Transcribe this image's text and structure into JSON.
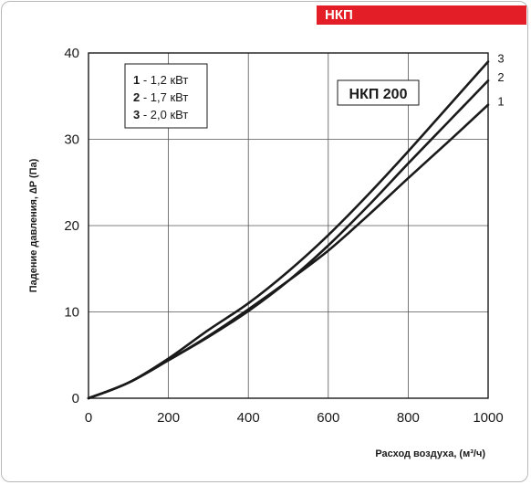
{
  "header": {
    "badge_label": "НКП"
  },
  "colors": {
    "badge": "#e41e26",
    "curves": "#1a1a1a",
    "grid": "#555555"
  },
  "chart_data": {
    "type": "line",
    "title": "",
    "model_label": "НКП 200",
    "xlabel": "Расход воздуха, (м³/ч)",
    "ylabel": "Падение давления, ∆P (Па)",
    "xlim": [
      0,
      1000
    ],
    "ylim": [
      0,
      40
    ],
    "xticks": [
      0,
      200,
      400,
      600,
      800,
      1000
    ],
    "yticks": [
      0,
      10,
      20,
      30,
      40
    ],
    "grid": true,
    "legend": {
      "placement": "top-left",
      "entries": [
        {
          "num": "1",
          "text": " - 1,2 кВт"
        },
        {
          "num": "2",
          "text": " - 1,7 кВт"
        },
        {
          "num": "3",
          "text": " - 2,0 кВт"
        }
      ]
    },
    "series": [
      {
        "name": "1",
        "x": [
          0,
          100,
          200,
          300,
          400,
          500,
          600,
          700,
          800,
          900,
          1000
        ],
        "y": [
          0,
          1.8,
          4.4,
          7.2,
          10.3,
          13.6,
          17.1,
          21.2,
          25.5,
          29.7,
          34.0
        ]
      },
      {
        "name": "2",
        "x": [
          0,
          100,
          200,
          300,
          400,
          500,
          600,
          700,
          800,
          900,
          1000
        ],
        "y": [
          0,
          1.8,
          4.4,
          7.1,
          10.1,
          13.6,
          17.7,
          22.3,
          27.2,
          32.0,
          36.8
        ]
      },
      {
        "name": "3",
        "x": [
          0,
          100,
          200,
          300,
          400,
          500,
          600,
          700,
          800,
          900,
          1000
        ],
        "y": [
          0,
          1.8,
          4.6,
          7.9,
          11.0,
          14.7,
          18.9,
          23.6,
          28.6,
          33.8,
          39.0
        ]
      }
    ]
  }
}
